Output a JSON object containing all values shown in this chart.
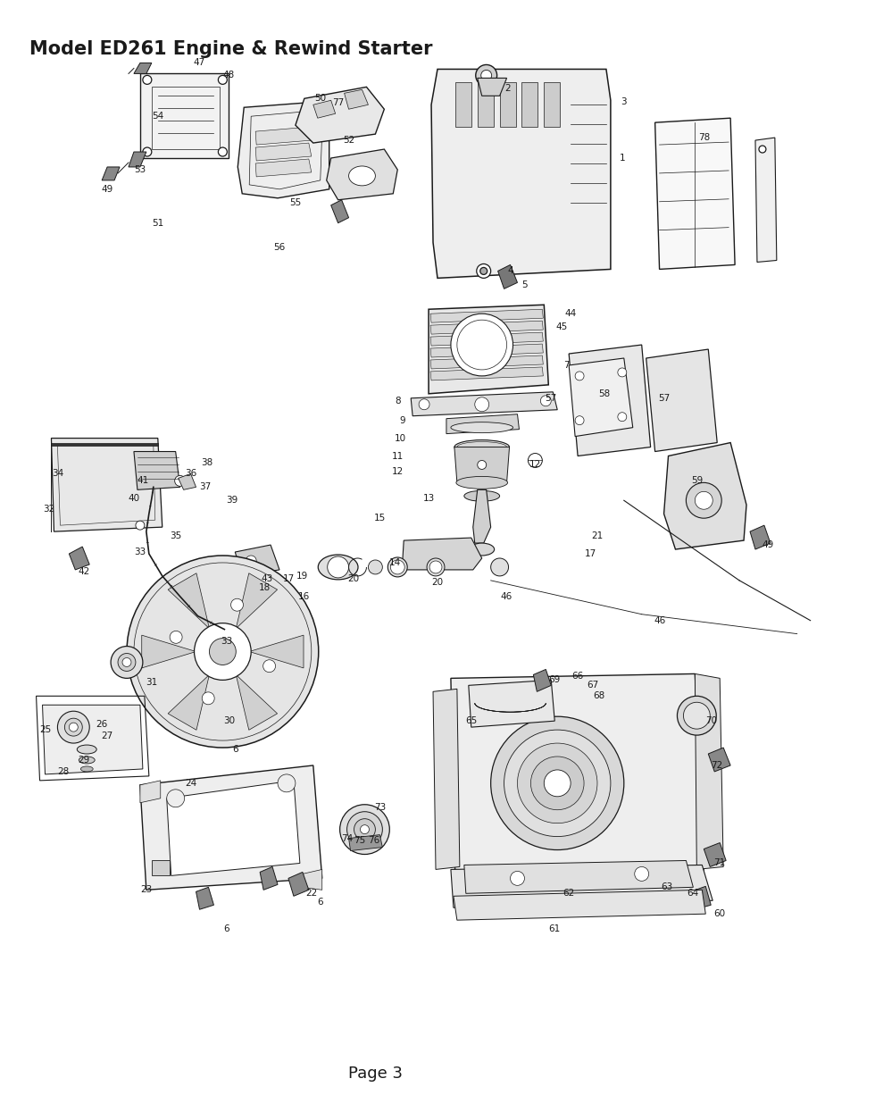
{
  "title": "Model ED261 Engine & Rewind Starter",
  "page_label": "Page 3",
  "background_color": "#ffffff",
  "title_fontsize": 15,
  "page_label_fontsize": 13,
  "fig_width": 9.8,
  "fig_height": 12.45,
  "dpi": 100,
  "line_color": "#1a1a1a",
  "label_fontsize": 7.5
}
